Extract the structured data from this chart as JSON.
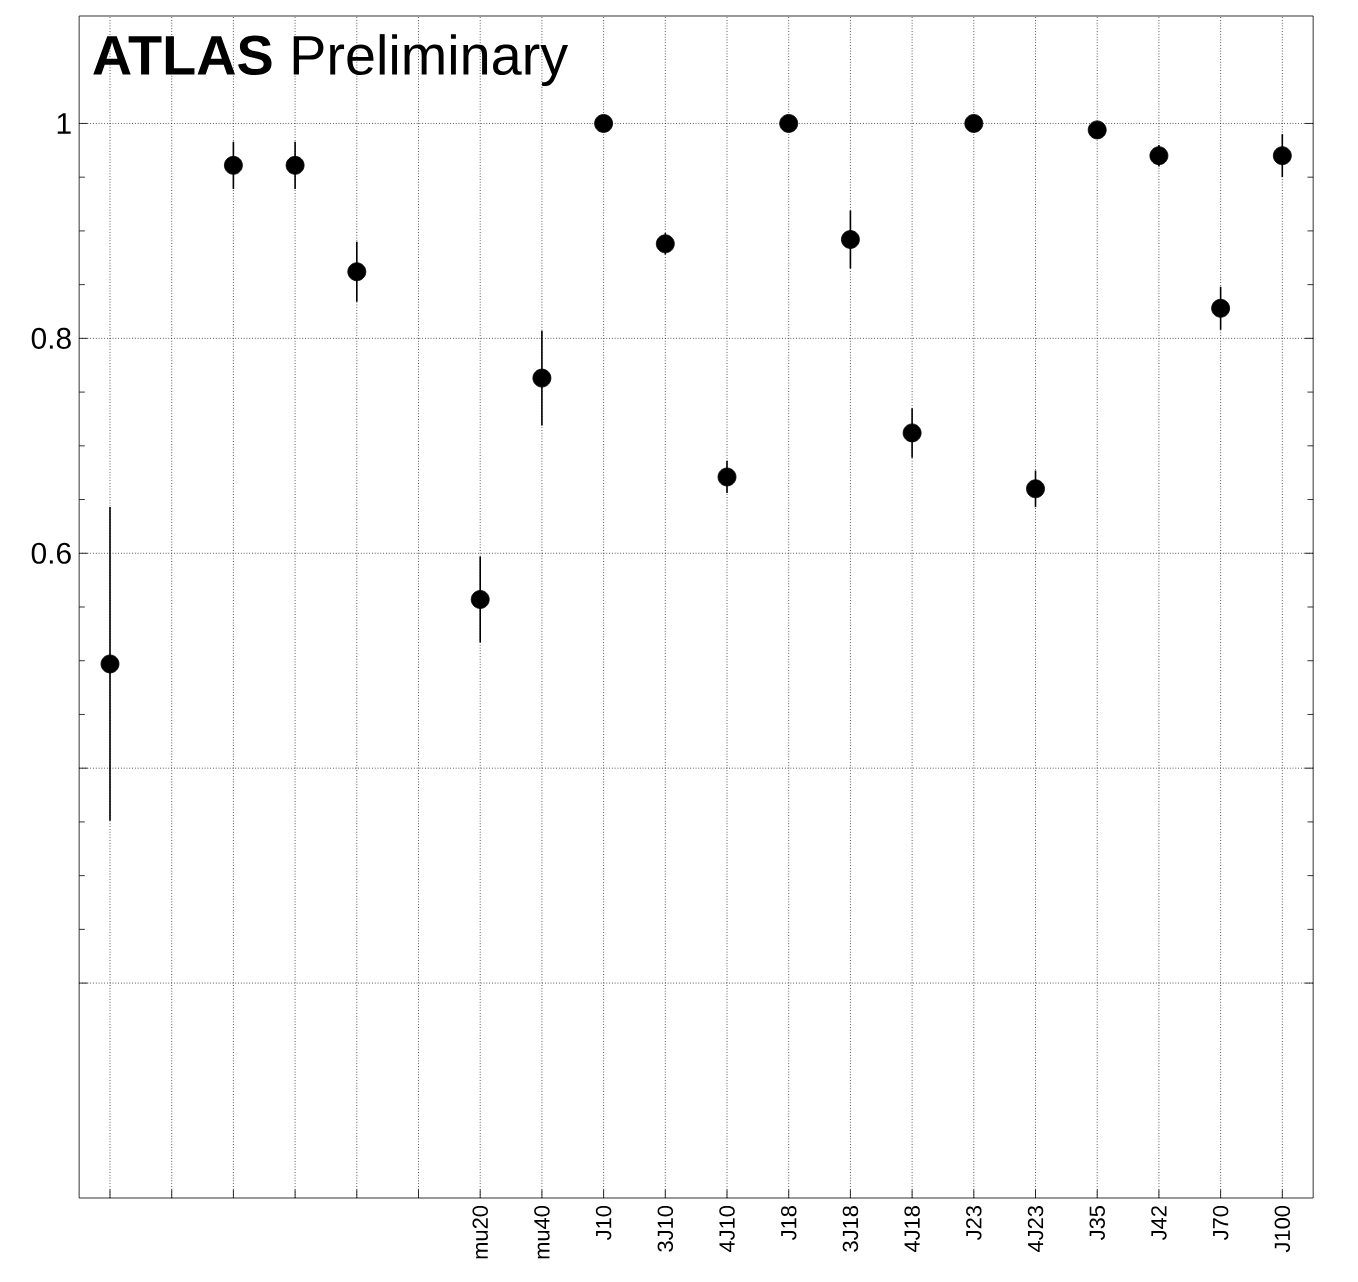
{
  "chart_data": {
    "type": "scatter",
    "title": "**ATLAS** Preliminary",
    "categories": [
      null,
      null,
      null,
      null,
      null,
      null,
      "mu20",
      "mu40",
      "J10",
      "3J10",
      "4J10",
      "J18",
      "3J18",
      "4J18",
      "J23",
      "4J23",
      "J35",
      "J42",
      "J70",
      "J100"
    ],
    "values": [
      0.497,
      null,
      0.961,
      0.961,
      0.862,
      null,
      0.557,
      0.763,
      1.0,
      0.888,
      0.671,
      1.0,
      0.892,
      0.712,
      1.0,
      0.66,
      0.994,
      0.97,
      0.828,
      0.97
    ],
    "errors": [
      0.146,
      null,
      0.022,
      0.022,
      0.028,
      null,
      0.04,
      0.044,
      null,
      0.01,
      0.015,
      null,
      0.027,
      0.023,
      null,
      0.017,
      0.005,
      0.01,
      0.02,
      0.02
    ],
    "color": "#000000",
    "grid": true,
    "ylim": [
      0,
      1.1
    ],
    "yticks": [
      {
        "value": 0.2,
        "label": null
      },
      {
        "value": 0.4,
        "label": null
      },
      0.6,
      0.8,
      1
    ]
  }
}
